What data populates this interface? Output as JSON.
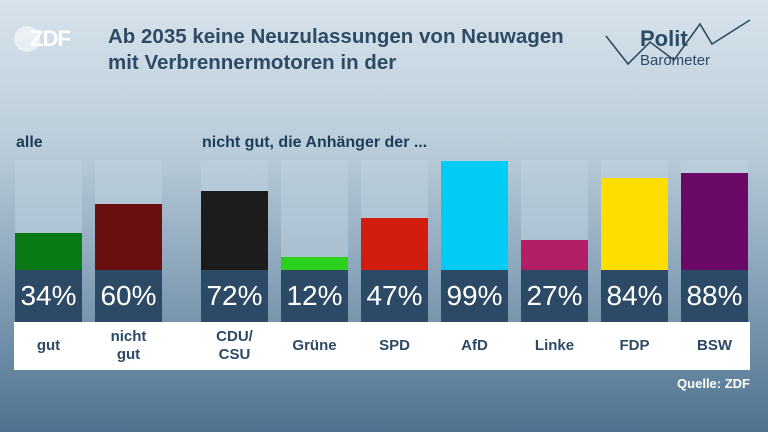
{
  "logo": {
    "brand": "ZDF"
  },
  "polit_logo": {
    "line1": "Polit",
    "line2": "Barometer"
  },
  "title": "Ab 2035 keine Neuzulassungen von Neuwagen mit Verbrennermotoren in der",
  "group_all_label": "alle",
  "group_parties_label": "nicht gut, die Anhänger der ...",
  "source": "Quelle: ZDF",
  "chart_data": {
    "type": "bar",
    "ylim": [
      0,
      100
    ],
    "grid": false,
    "bars": [
      {
        "category": "gut",
        "value": 34,
        "label": "34%",
        "color": "#0a7a17"
      },
      {
        "category": "nicht\ngut",
        "value": 60,
        "label": "60%",
        "color": "#6b1010"
      },
      {
        "category": "CDU/\nCSU",
        "value": 72,
        "label": "72%",
        "color": "#1c1c1c"
      },
      {
        "category": "Grüne",
        "value": 12,
        "label": "12%",
        "color": "#2bd21d"
      },
      {
        "category": "SPD",
        "value": 47,
        "label": "47%",
        "color": "#d21d0e"
      },
      {
        "category": "AfD",
        "value": 99,
        "label": "99%",
        "color": "#00ccf5"
      },
      {
        "category": "Linke",
        "value": 27,
        "label": "27%",
        "color": "#b21f66"
      },
      {
        "category": "FDP",
        "value": 84,
        "label": "84%",
        "color": "#fede00"
      },
      {
        "category": "BSW",
        "value": 88,
        "label": "88%",
        "color": "#6a0a66"
      }
    ]
  }
}
